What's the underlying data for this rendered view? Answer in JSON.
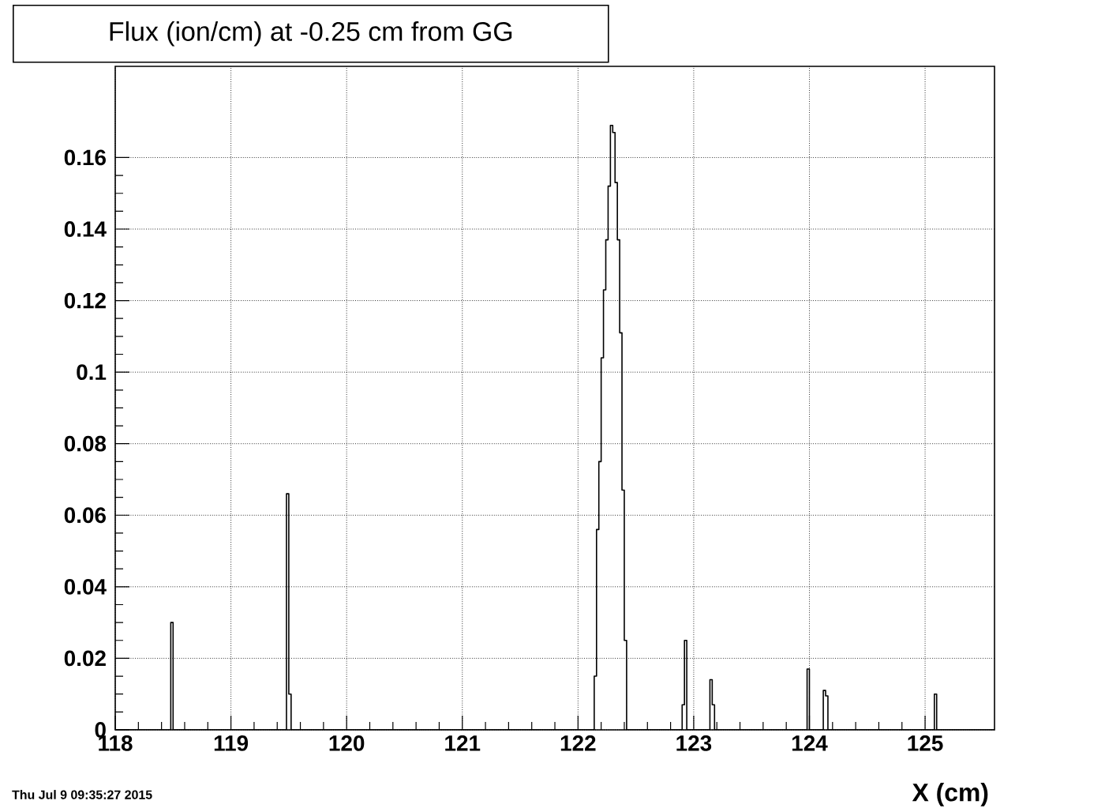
{
  "chart_data": {
    "type": "histogram",
    "title": "Flux (ion/cm) at -0.25 cm from GG",
    "xlabel": "X (cm)",
    "annotations": [
      "Thu Jul  9 09:35:27 2015"
    ],
    "bins": [
      118,
      118.48,
      118.5,
      119.48,
      119.5,
      119.52,
      122.14,
      122.16,
      122.18,
      122.2,
      122.22,
      122.24,
      122.26,
      122.28,
      122.3,
      122.32,
      122.34,
      122.36,
      122.38,
      122.4,
      122.42,
      122.9,
      122.92,
      122.94,
      123.14,
      123.16,
      123.18,
      123.98,
      124.0,
      124.12,
      124.14,
      124.16,
      125.08,
      125.1,
      125.6
    ],
    "values": [
      0,
      0.03,
      0,
      0.066,
      0.01,
      0,
      0.015,
      0.056,
      0.075,
      0.104,
      0.123,
      0.137,
      0.152,
      0.169,
      0.167,
      0.153,
      0.137,
      0.111,
      0.067,
      0.025,
      0,
      0.007,
      0.025,
      0,
      0.014,
      0.007,
      0,
      0.017,
      0,
      0.011,
      0.0095,
      0,
      0.01,
      0
    ],
    "color": "#000000",
    "xlim": [
      118,
      125.6
    ],
    "ylim": [
      0,
      0.1855
    ],
    "xticks": [
      118,
      119,
      120,
      121,
      122,
      123,
      124,
      125
    ],
    "yticks": [
      0,
      0.02,
      0.04,
      0.06,
      0.08,
      0.1,
      0.12,
      0.14,
      0.16
    ],
    "grid": true
  }
}
